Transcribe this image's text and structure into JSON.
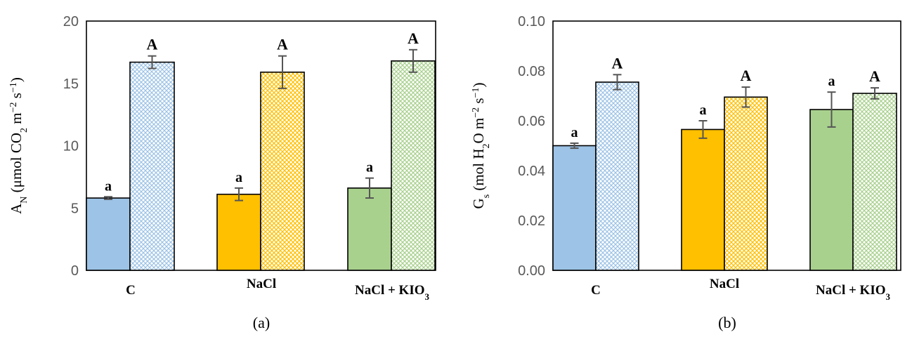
{
  "colors": {
    "blue": "#9DC3E6",
    "orange": "#FFC000",
    "green": "#A9D18E"
  },
  "chart_data": [
    {
      "type": "bar",
      "panel_label": "(a)",
      "ylabel": "A_N (μmol CO_2 m^−2 s^−1)",
      "ylabel_parts": {
        "main": "A",
        "main_sub": "N",
        "pre_co2": " (μmol CO",
        "co2_sub": "2",
        "mid": " m",
        "m_sup": "−2",
        "s": " s",
        "s_sup": "−1",
        "close": ")"
      },
      "ylim": [
        0,
        20
      ],
      "yticks": [
        "0",
        "5",
        "10",
        "15",
        "20"
      ],
      "ytick_values": [
        0,
        5,
        10,
        15,
        20
      ],
      "categories": [
        "C",
        "NaCl",
        "NaCl + KIO3"
      ],
      "category_labels": [
        {
          "main": "C",
          "sub": ""
        },
        {
          "main": "NaCl",
          "sub": ""
        },
        {
          "main": "NaCl + KIO",
          "sub": "3"
        }
      ],
      "series": [
        {
          "values": [
            5.8,
            6.1,
            6.6
          ],
          "errors": [
            0.1,
            0.5,
            0.8
          ],
          "letters": [
            "a",
            "a",
            "a"
          ],
          "pattern": "solid"
        },
        {
          "values": [
            16.7,
            15.9,
            16.8
          ],
          "errors": [
            0.5,
            1.3,
            0.9
          ],
          "letters": [
            "A",
            "A",
            "A"
          ],
          "pattern": "hatched"
        }
      ]
    },
    {
      "type": "bar",
      "panel_label": "(b)",
      "ylabel": "G_s (mol H_2O m^−2 s^−1)",
      "ylabel_parts": {
        "main": "G",
        "main_sub": "s",
        "pre_co2": " (mol H",
        "co2_sub": "2",
        "mid": "O m",
        "m_sup": "−2",
        "s": " s",
        "s_sup": "−1",
        "close": ")"
      },
      "ylim": [
        0,
        0.1
      ],
      "yticks": [
        "0.00",
        "0.02",
        "0.04",
        "0.06",
        "0.08",
        "0.10"
      ],
      "ytick_values": [
        0,
        0.02,
        0.04,
        0.06,
        0.08,
        0.1
      ],
      "categories": [
        "C",
        "NaCl",
        "NaCl + KIO3"
      ],
      "category_labels": [
        {
          "main": "C",
          "sub": ""
        },
        {
          "main": "NaCl",
          "sub": ""
        },
        {
          "main": "NaCl + KIO",
          "sub": "3"
        }
      ],
      "series": [
        {
          "values": [
            0.05,
            0.0565,
            0.0645
          ],
          "errors": [
            0.001,
            0.0035,
            0.007
          ],
          "letters": [
            "a",
            "a",
            "a"
          ],
          "pattern": "solid"
        },
        {
          "values": [
            0.0755,
            0.0695,
            0.071
          ],
          "errors": [
            0.003,
            0.004,
            0.0022
          ],
          "letters": [
            "A",
            "A",
            "A"
          ],
          "pattern": "hatched"
        }
      ]
    }
  ]
}
